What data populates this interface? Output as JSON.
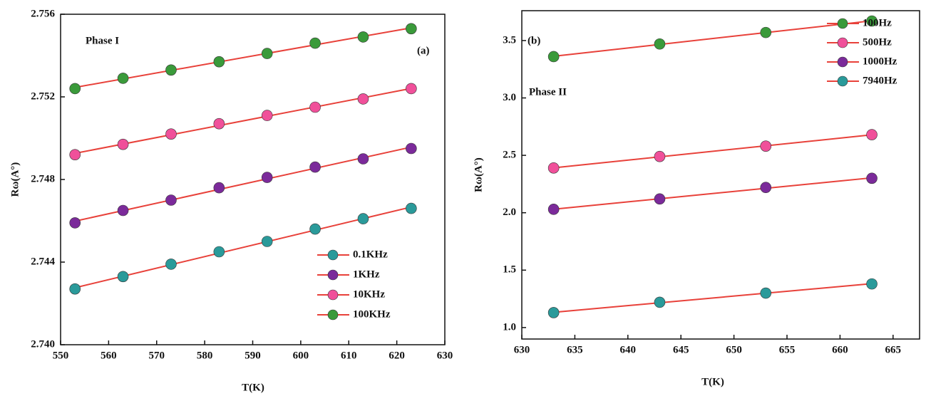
{
  "chart_data": [
    {
      "type": "scatter",
      "x_label": "T(K)",
      "y_label": "Rω(A°)",
      "annotations": [
        {
          "text": "Phase I",
          "color": "#2a9090"
        },
        {
          "text": "(a)",
          "color": "#e0302a"
        }
      ],
      "x": [
        553,
        563,
        573,
        583,
        593,
        603,
        613,
        623
      ],
      "series": [
        {
          "name": "0.1KHz",
          "color": "#2a9a9a",
          "values": [
            2.7427,
            2.7433,
            2.7439,
            2.7445,
            2.745,
            2.7456,
            2.7461,
            2.7466
          ]
        },
        {
          "name": "1KHz",
          "color": "#7b2a9a",
          "values": [
            2.7459,
            2.7465,
            2.747,
            2.7476,
            2.7481,
            2.7486,
            2.749,
            2.7495
          ]
        },
        {
          "name": "10KHz",
          "color": "#f0509a",
          "values": [
            2.7492,
            2.7497,
            2.7502,
            2.7507,
            2.7511,
            2.7515,
            2.7519,
            2.7524
          ]
        },
        {
          "name": "100KHz",
          "color": "#3a9a3a",
          "values": [
            2.7524,
            2.7529,
            2.7533,
            2.7537,
            2.7541,
            2.7546,
            2.7549,
            2.7553
          ]
        }
      ],
      "fit_color": "#e8413a",
      "legend": "lower right",
      "xlim": [
        550,
        630
      ],
      "xticks": [
        550,
        560,
        570,
        580,
        590,
        600,
        610,
        620,
        630
      ],
      "ylim": [
        2.74,
        2.756
      ],
      "yticks": [
        {
          "value": 2.74,
          "label": "2.740"
        },
        2.744,
        2.748,
        2.752,
        2.756
      ]
    },
    {
      "type": "scatter",
      "x_label": "T(K)",
      "y_label": "Rω(A°)",
      "annotations": [
        {
          "text": "(b)",
          "color": "#e0302a"
        },
        {
          "text": "Phase II",
          "color": "#2a9090"
        }
      ],
      "x": [
        633,
        643,
        653,
        663
      ],
      "series": [
        {
          "name": "100Hz",
          "color": "#3a9a3a",
          "values": [
            3.36,
            3.47,
            3.57,
            3.67
          ]
        },
        {
          "name": "500Hz",
          "color": "#f0509a",
          "values": [
            2.39,
            2.49,
            2.58,
            2.68
          ]
        },
        {
          "name": "1000Hz",
          "color": "#7b2a9a",
          "values": [
            2.03,
            2.12,
            2.22,
            2.3
          ]
        },
        {
          "name": "7940Hz",
          "color": "#2a9a9a",
          "values": [
            1.13,
            1.22,
            1.3,
            1.38
          ]
        }
      ],
      "fit_color": "#e8413a",
      "legend": "upper right",
      "xlim": [
        630,
        667.5
      ],
      "xticks": [
        630,
        635,
        640,
        645,
        650,
        655,
        660,
        665
      ],
      "ylim": [
        0.9,
        3.76
      ],
      "yticks": [
        {
          "value": 1,
          "label": "1.0"
        },
        1.5,
        {
          "value": 2,
          "label": "2.0"
        },
        2.5,
        {
          "value": 3,
          "label": "3.0"
        },
        3.5
      ]
    }
  ]
}
